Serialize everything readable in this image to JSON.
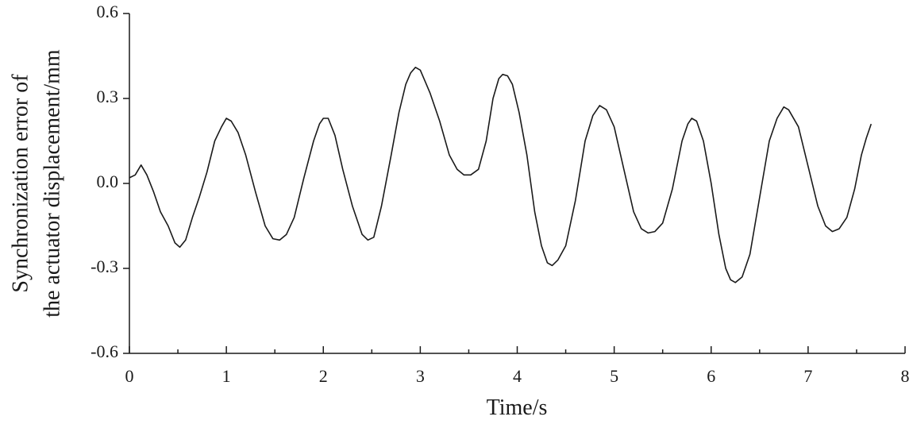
{
  "chart_data": {
    "type": "line",
    "xlabel": "Time/s",
    "ylabel": [
      "Synchronization error of",
      "the actuator displacement/mm"
    ],
    "xlim": [
      0,
      8
    ],
    "xticks": [
      0,
      1,
      2,
      3,
      4,
      5,
      6,
      7,
      8
    ],
    "xminorticks": [
      0.5,
      1.5,
      2.5,
      3.5,
      4.5,
      5.5,
      6.5,
      7.5
    ],
    "ylim": [
      -0.6,
      0.6
    ],
    "yticks": [
      0.6,
      0.3,
      {
        "value": 0,
        "label": "0.0"
      },
      -0.3,
      -0.6
    ],
    "grid": false,
    "series": [
      {
        "color": "#1a1a1a",
        "x": [
          0,
          0.06,
          0.12,
          0.18,
          0.25,
          0.32,
          0.4,
          0.47,
          0.52,
          0.58,
          0.65,
          0.72,
          0.8,
          0.88,
          0.95,
          1.0,
          1.05,
          1.12,
          1.2,
          1.3,
          1.4,
          1.48,
          1.55,
          1.62,
          1.7,
          1.8,
          1.9,
          1.96,
          2.0,
          2.05,
          2.12,
          2.2,
          2.3,
          2.4,
          2.46,
          2.52,
          2.6,
          2.7,
          2.78,
          2.85,
          2.9,
          2.95,
          3.0,
          3.05,
          3.1,
          3.2,
          3.3,
          3.38,
          3.45,
          3.52,
          3.6,
          3.68,
          3.75,
          3.81,
          3.85,
          3.9,
          3.95,
          4.02,
          4.1,
          4.18,
          4.25,
          4.31,
          4.36,
          4.42,
          4.5,
          4.6,
          4.7,
          4.78,
          4.85,
          4.92,
          5.0,
          5.1,
          5.2,
          5.28,
          5.35,
          5.42,
          5.5,
          5.6,
          5.7,
          5.76,
          5.8,
          5.85,
          5.92,
          6.0,
          6.08,
          6.15,
          6.2,
          6.25,
          6.32,
          6.4,
          6.5,
          6.6,
          6.68,
          6.75,
          6.8,
          6.9,
          7.0,
          7.1,
          7.18,
          7.25,
          7.32,
          7.4,
          7.48,
          7.55,
          7.6,
          7.65
        ],
        "values": [
          0.02,
          0.03,
          0.065,
          0.03,
          -0.03,
          -0.1,
          -0.15,
          -0.21,
          -0.225,
          -0.2,
          -0.12,
          -0.05,
          0.04,
          0.15,
          0.2,
          0.23,
          0.22,
          0.18,
          0.1,
          -0.03,
          -0.15,
          -0.195,
          -0.2,
          -0.18,
          -0.12,
          0.02,
          0.15,
          0.21,
          0.23,
          0.23,
          0.17,
          0.05,
          -0.08,
          -0.18,
          -0.2,
          -0.19,
          -0.08,
          0.1,
          0.25,
          0.35,
          0.39,
          0.41,
          0.4,
          0.36,
          0.32,
          0.22,
          0.1,
          0.05,
          0.03,
          0.03,
          0.05,
          0.15,
          0.3,
          0.37,
          0.385,
          0.38,
          0.35,
          0.25,
          0.1,
          -0.1,
          -0.22,
          -0.28,
          -0.29,
          -0.27,
          -0.22,
          -0.06,
          0.15,
          0.24,
          0.275,
          0.26,
          0.2,
          0.05,
          -0.1,
          -0.16,
          -0.175,
          -0.17,
          -0.14,
          -0.02,
          0.15,
          0.21,
          0.23,
          0.22,
          0.15,
          0.0,
          -0.18,
          -0.3,
          -0.34,
          -0.35,
          -0.33,
          -0.25,
          -0.05,
          0.15,
          0.23,
          0.27,
          0.26,
          0.2,
          0.06,
          -0.08,
          -0.15,
          -0.17,
          -0.16,
          -0.12,
          -0.02,
          0.1,
          0.16,
          0.21
        ]
      }
    ]
  }
}
